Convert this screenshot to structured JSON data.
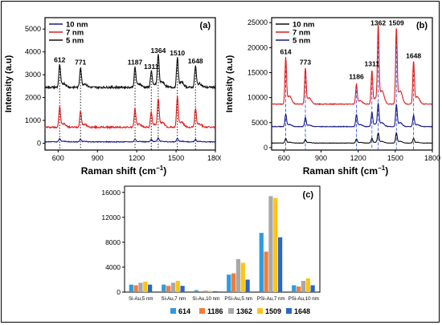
{
  "colors": {
    "s10": "#1a1a8c",
    "s7": "#e01b1b",
    "s5": "#111111",
    "b614": "#2e9be0",
    "b1186": "#f07d3a",
    "b1362": "#a8a8a8",
    "b1509": "#ffc412",
    "b1648": "#2a66c9",
    "dotted": "#000000",
    "dashed_b": "#3a5ee0"
  },
  "chart_data": [
    {
      "id": "a",
      "type": "line",
      "panel_label": "(a)",
      "xlabel": "Raman shift (cm",
      "xlabel_sup": "−1",
      "xlabel_close": ")",
      "ylabel": "Intensity (a.u)",
      "xlim": [
        500,
        1800
      ],
      "ylim": [
        -300,
        5500
      ],
      "xticks": [
        600,
        900,
        1200,
        1500,
        1800
      ],
      "yticks": [
        0,
        1000,
        2000,
        3000,
        4000,
        5000
      ],
      "legend_position": "top-left",
      "series": [
        {
          "name": "10 nm",
          "color_key": "s10",
          "baseline": 60,
          "noise": 30,
          "peaks": [
            [
              612,
              140
            ],
            [
              771,
              110
            ],
            [
              1187,
              120
            ],
            [
              1311,
              100
            ],
            [
              1364,
              160
            ],
            [
              1510,
              150
            ],
            [
              1648,
              110
            ]
          ]
        },
        {
          "name": "7 nm",
          "color_key": "s7",
          "baseline": 700,
          "noise": 70,
          "peaks": [
            [
              612,
              850
            ],
            [
              771,
              700
            ],
            [
              1187,
              780
            ],
            [
              1311,
              650
            ],
            [
              1364,
              1150
            ],
            [
              1510,
              1300
            ],
            [
              1648,
              800
            ]
          ]
        },
        {
          "name": "5 nm",
          "color_key": "s5",
          "baseline": 2450,
          "noise": 90,
          "peaks": [
            [
              612,
              950
            ],
            [
              771,
              850
            ],
            [
              1187,
              850
            ],
            [
              1311,
              700
            ],
            [
              1364,
              1350
            ],
            [
              1510,
              1250
            ],
            [
              1648,
              900
            ]
          ]
        }
      ],
      "peak_labels": [
        {
          "x": 612,
          "label": "612",
          "y": 3550
        },
        {
          "x": 771,
          "label": "771",
          "y": 3450
        },
        {
          "x": 1187,
          "label": "1187",
          "y": 3450
        },
        {
          "x": 1311,
          "label": "1311",
          "y": 3250
        },
        {
          "x": 1364,
          "label": "1364",
          "y": 3950
        },
        {
          "x": 1510,
          "label": "1510",
          "y": 3850
        },
        {
          "x": 1648,
          "label": "1648",
          "y": 3500
        }
      ]
    },
    {
      "id": "b",
      "type": "line",
      "panel_label": "(b)",
      "xlabel": "Raman shift (cm",
      "xlabel_sup": "−1",
      "xlabel_close": ")",
      "ylabel": "Intensity (a.u)",
      "xlim": [
        500,
        1800
      ],
      "ylim": [
        -500,
        26000
      ],
      "xticks": [
        600,
        900,
        1200,
        1500,
        1800
      ],
      "yticks": [
        0,
        5000,
        10000,
        15000,
        20000,
        25000
      ],
      "legend_position": "top-left",
      "series": [
        {
          "name": "10 nm",
          "color_key": "s5",
          "baseline": 900,
          "noise": 60,
          "peaks": [
            [
              614,
              900
            ],
            [
              773,
              700
            ],
            [
              1186,
              800
            ],
            [
              1311,
              900
            ],
            [
              1362,
              1900
            ],
            [
              1509,
              2000
            ],
            [
              1648,
              900
            ]
          ]
        },
        {
          "name": "7 nm",
          "color_key": "s7",
          "baseline": 8700,
          "noise": 150,
          "peaks": [
            [
              614,
              9000
            ],
            [
              773,
              7000
            ],
            [
              1186,
              3800
            ],
            [
              1311,
              6500
            ],
            [
              1362,
              14800
            ],
            [
              1509,
              14800
            ],
            [
              1648,
              8300
            ]
          ]
        },
        {
          "name": "5 nm",
          "color_key": "s10",
          "baseline": 4200,
          "noise": 120,
          "peaks": [
            [
              614,
              2400
            ],
            [
              773,
              1800
            ],
            [
              1186,
              2300
            ],
            [
              1311,
              2800
            ],
            [
              1362,
              4300
            ],
            [
              1509,
              4300
            ],
            [
              1648,
              2200
            ]
          ]
        }
      ],
      "peak_labels": [
        {
          "x": 614,
          "label": "614",
          "y": 18700
        },
        {
          "x": 773,
          "label": "773",
          "y": 16600
        },
        {
          "x": 1186,
          "label": "1186",
          "y": 13700
        },
        {
          "x": 1311,
          "label": "1311",
          "y": 16300
        },
        {
          "x": 1362,
          "label": "1362",
          "y": 24500
        },
        {
          "x": 1509,
          "label": "1509",
          "y": 24500
        },
        {
          "x": 1648,
          "label": "1648",
          "y": 17900
        }
      ]
    },
    {
      "id": "c",
      "type": "bar",
      "panel_label": "(c)",
      "ylim": [
        0,
        17000
      ],
      "yticks": [
        0,
        4000,
        8000,
        12000,
        16000
      ],
      "categories": [
        "Si-Au,5 nm",
        "Si-Au,7 nm",
        "Si-Au,10 nm",
        "PSi-Au,5 nm",
        "PSi-Au,7 nm",
        "PSi-Au,10 nm"
      ],
      "legend_position": "bottom",
      "series": [
        {
          "name": "614",
          "color_key": "b614",
          "values": [
            1200,
            1200,
            300,
            2800,
            9500,
            1100
          ]
        },
        {
          "name": "1186",
          "color_key": "b1186",
          "values": [
            1100,
            1000,
            150,
            3000,
            6500,
            900
          ]
        },
        {
          "name": "1362",
          "color_key": "b1362",
          "values": [
            1500,
            1500,
            250,
            5300,
            15400,
            1800
          ]
        },
        {
          "name": "1509",
          "color_key": "b1509",
          "values": [
            1700,
            1800,
            200,
            4700,
            15100,
            2200
          ]
        },
        {
          "name": "1648",
          "color_key": "b1648",
          "values": [
            1200,
            1000,
            150,
            2000,
            8800,
            1100
          ]
        }
      ]
    }
  ]
}
